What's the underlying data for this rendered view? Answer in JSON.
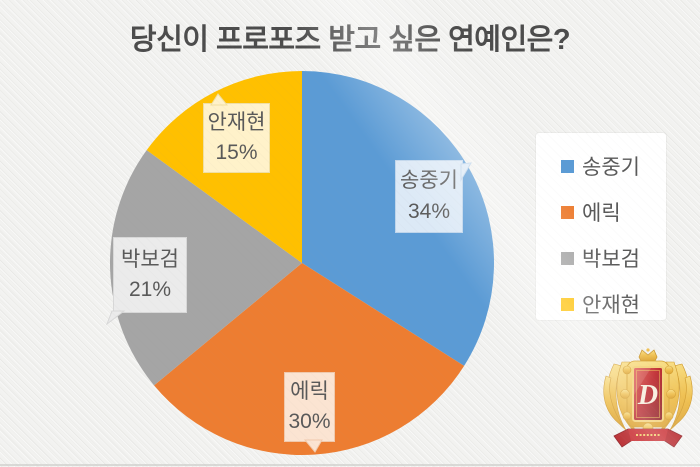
{
  "title": "당신이 프로포즈 받고 싶은 연예인은?",
  "chart_data": {
    "type": "pie",
    "title": "당신이 프로포즈 받고 싶은 연예인은?",
    "categories": [
      "송중기",
      "에릭",
      "박보검",
      "안재현"
    ],
    "values": [
      34,
      30,
      21,
      15
    ],
    "unit": "%",
    "start_angle": "12-oclock",
    "direction": "clockwise",
    "colors": [
      "#5B9BD5",
      "#ED7D31",
      "#A5A5A5",
      "#FFC000"
    ],
    "legend_position": "right",
    "callouts": [
      {
        "name": "송중기",
        "pct": "34%",
        "bg": "#DCE9F6",
        "border": "#BFD5EB"
      },
      {
        "name": "에릭",
        "pct": "30%",
        "bg": "#FBE4D2",
        "border": "#F0C9AC"
      },
      {
        "name": "박보검",
        "pct": "21%",
        "bg": "#EBEBEB",
        "border": "#D8D8D8"
      },
      {
        "name": "안재현",
        "pct": "15%",
        "bg": "#FFF2CA",
        "border": "#F0DFA3"
      }
    ]
  },
  "legend": {
    "items": [
      {
        "label": "송중기",
        "color": "#5B9BD5"
      },
      {
        "label": "에릭",
        "color": "#ED7D31"
      },
      {
        "label": "박보검",
        "color": "#A5A5A5"
      },
      {
        "label": "안재현",
        "color": "#FFC000"
      }
    ]
  },
  "logo": {
    "monogram": "D"
  },
  "theme": {
    "background": "#F2F2F0",
    "title_color": "#4C4C4C",
    "text_color": "#595959",
    "legend_bg": "#FFFFFF"
  }
}
